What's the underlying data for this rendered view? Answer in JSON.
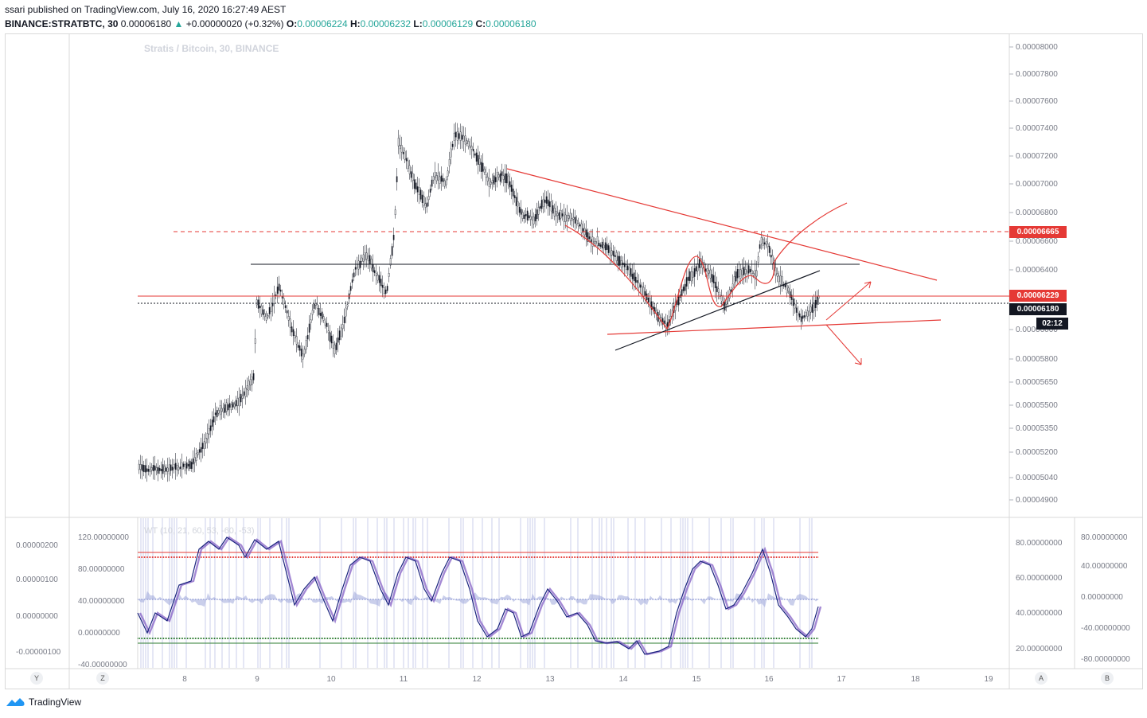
{
  "header": {
    "publish_line": "ssari published on TradingView.com, July 16, 2020 16:27:49 AEST",
    "symbol": "BINANCE:STRATBTC, 30",
    "last": "0.00006180",
    "change_arrow": "▲",
    "change": "+0.00000020 (+0.32%)",
    "o_label": "O:",
    "o_value": "0.00006224",
    "h_label": "H:",
    "h_value": "0.00006232",
    "l_label": "L:",
    "l_value": "0.00006129",
    "c_label": "C:",
    "c_value": "0.00006180"
  },
  "chart": {
    "title": "Stratis / Bitcoin, 30, BINANCE",
    "price_axis": [
      "0.00008000",
      "0.00007800",
      "0.00007600",
      "0.00007400",
      "0.00007200",
      "0.00007000",
      "0.00006800",
      "0.00006600",
      "0.00006400",
      "0.00006200",
      "0.00006000",
      "0.00005800",
      "0.00005650",
      "0.00005500",
      "0.00005350",
      "0.00005200",
      "0.00005040",
      "0.00004900"
    ],
    "tag_resistance": "0.00006665",
    "tag_level": "0.00006229",
    "tag_last": "0.00006180",
    "countdown": "02:12",
    "time_axis": [
      "8",
      "9",
      "10",
      "11",
      "12",
      "13",
      "14",
      "15",
      "16",
      "17",
      "18",
      "19"
    ],
    "colors": {
      "up": "#26a69a",
      "down": "#ef5350",
      "drawing_red": "#e53935",
      "drawing_black": "#131722"
    }
  },
  "indicator": {
    "title": "WT (10, 21, 60, 53, -60, -53)",
    "left_axis_outer": [
      "0.00000200",
      "0.00000100",
      "0.00000000",
      "-0.00000100"
    ],
    "left_axis_inner": [
      "120.00000000",
      "80.00000000",
      "40.00000000",
      "0.00000000",
      "-40.00000000"
    ],
    "right_axis_inner": [
      "80.00000000",
      "60.00000000",
      "40.00000000",
      "20.00000000"
    ],
    "right_axis_outer": [
      "80.00000000",
      "40.00000000",
      "0.00000000",
      "-40.00000000",
      "-80.00000000"
    ]
  },
  "corner_buttons": {
    "y": "Y",
    "z": "Z",
    "a": "A",
    "b": "B"
  },
  "footer": {
    "brand": "TradingView"
  }
}
